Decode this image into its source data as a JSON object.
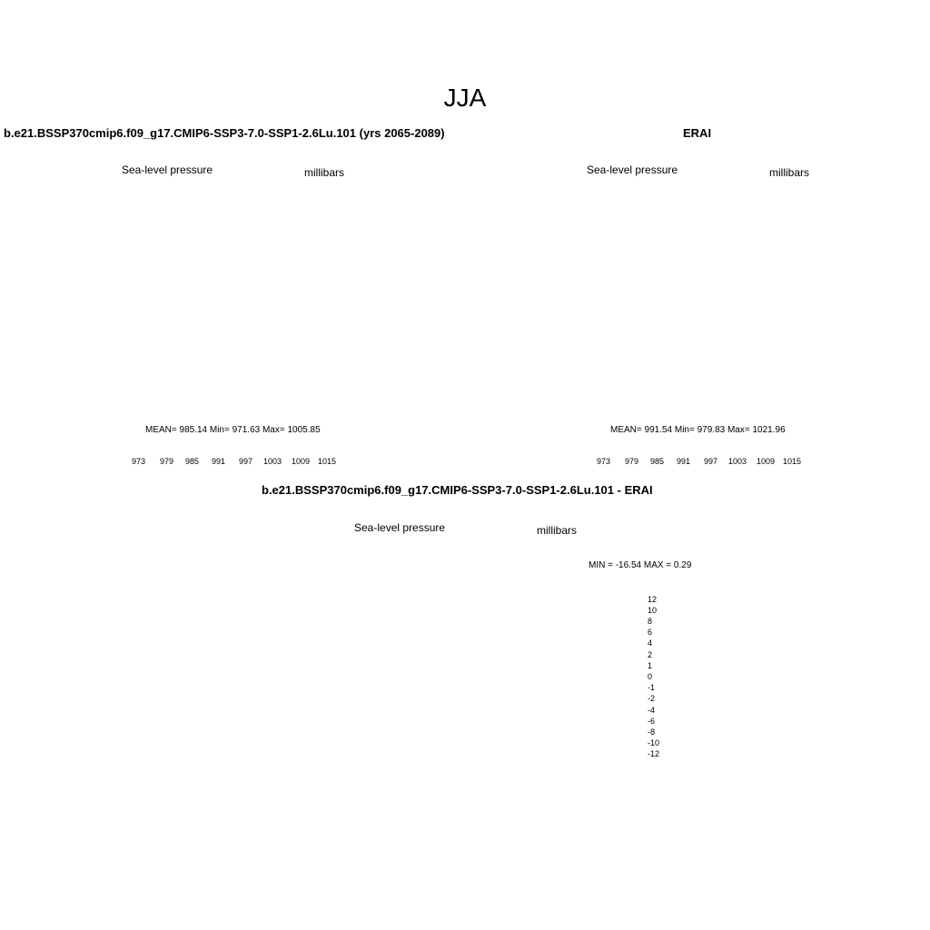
{
  "figure": {
    "title": "JJA"
  },
  "palette": {
    "full": [
      "#00008b",
      "#0a1db0",
      "#1b3fd3",
      "#2f5ff0",
      "#4f7ef5",
      "#79a2f7",
      "#a6c3fb",
      "#d4e6fb",
      "#fdeadb",
      "#fcc4a6",
      "#f79b77",
      "#f36b47",
      "#e44220",
      "#c4250f",
      "#8c0b05"
    ],
    "diff": [
      "#00007a",
      "#0f22b8",
      "#1f3ed6",
      "#3660ee",
      "#5a83f4",
      "#89aaf7",
      "#b4cdfa",
      "#deedfb",
      "#fdf0dc",
      "#fbcdb0",
      "#f8a47c",
      "#f47a4d",
      "#e94e21",
      "#c82b0c",
      "#8a0f04"
    ]
  },
  "panels": [
    {
      "id": "model",
      "title": "b.e21.BSSP370cmip6.f09_g17.CMIP6-SSP3-7.0-SSP1-2.6Lu.101 (yrs 2065-2089)",
      "variable": "Sea-level pressure",
      "units": "millibars",
      "stats": "MEAN= 985.14  Min= 971.63  Max= 1005.85",
      "colorbar_labels": [
        "973",
        "979",
        "985",
        "991",
        "997",
        "1003",
        "1009",
        "1015"
      ]
    },
    {
      "id": "obs",
      "title": "ERAI",
      "variable": "Sea-level pressure",
      "units": "millibars",
      "stats": "MEAN= 991.54  Min= 979.83  Max= 1021.96",
      "colorbar_labels": [
        "973",
        "979",
        "985",
        "991",
        "997",
        "1003",
        "1009",
        "1015"
      ]
    },
    {
      "id": "diff",
      "title": "b.e21.BSSP370cmip6.f09_g17.CMIP6-SSP3-7.0-SSP1-2.6Lu.101 - ERAI",
      "variable": "Sea-level pressure",
      "units": "millibars",
      "stats": "MIN = -16.54 MAX =   0.29",
      "colorbar_labels": [
        "12",
        "10",
        "8",
        "6",
        "4",
        "2",
        "1",
        "0",
        "-1",
        "-2",
        "-4",
        "-6",
        "-8",
        "-10",
        "-12"
      ]
    }
  ]
}
